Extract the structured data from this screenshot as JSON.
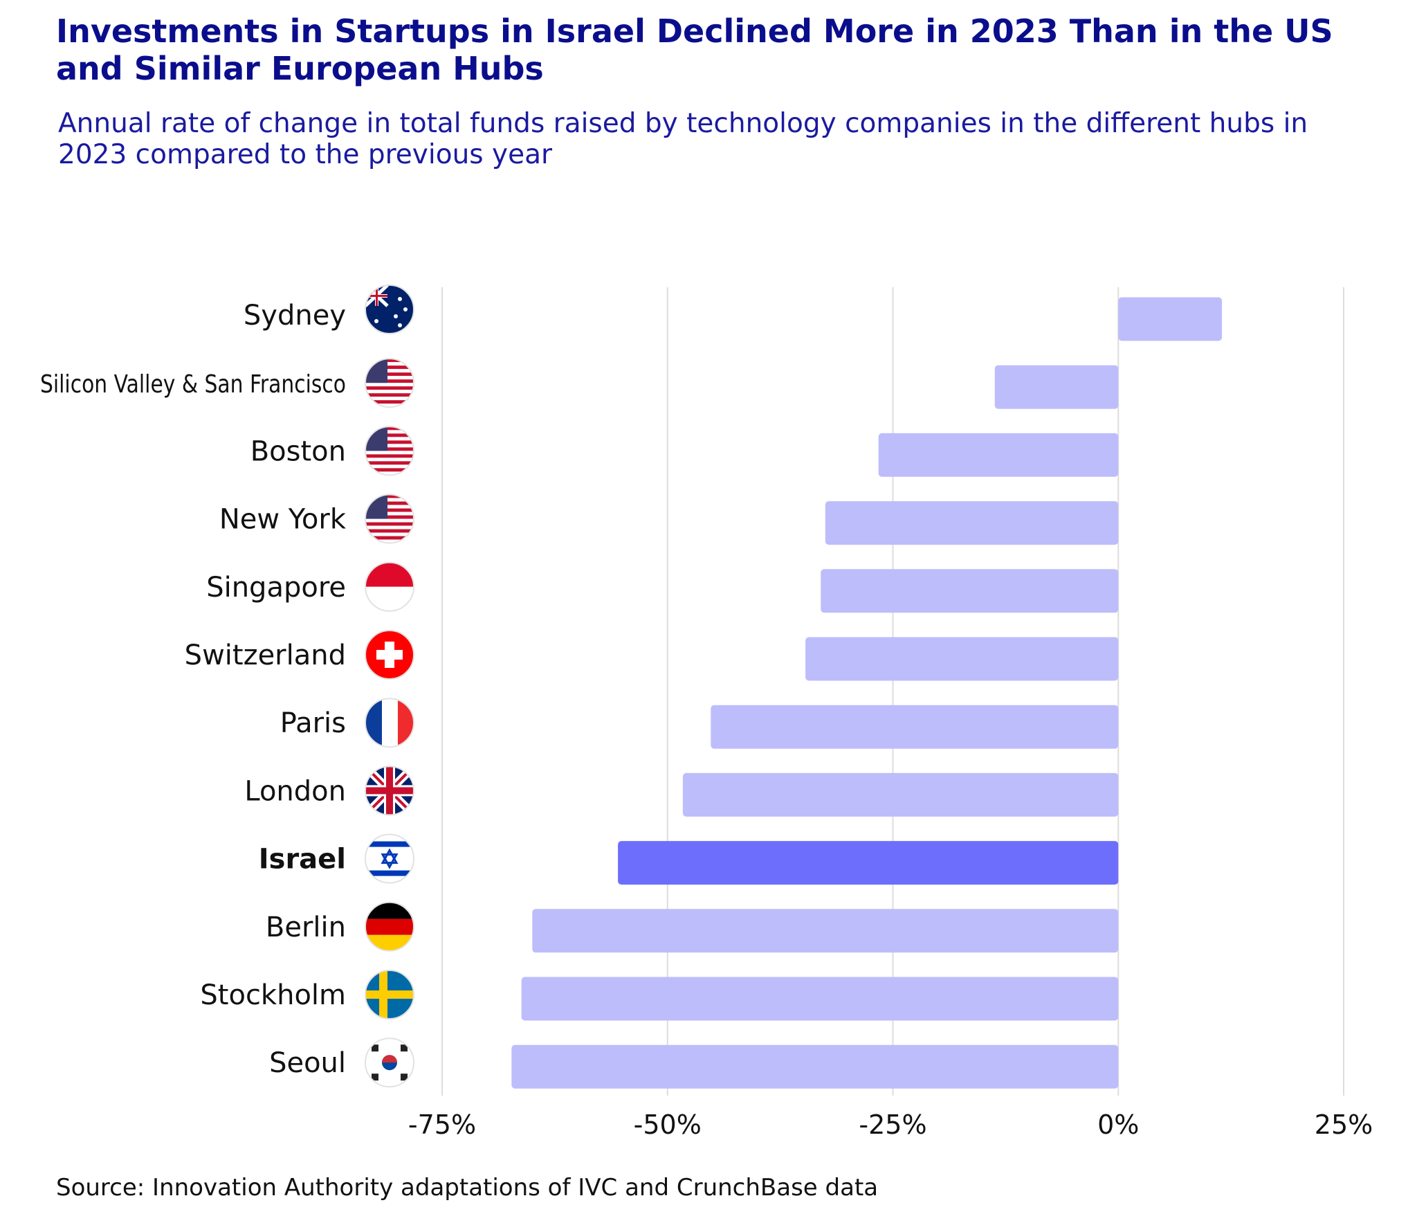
{
  "chart_data": {
    "type": "bar",
    "orientation": "horizontal",
    "title": "Investments in Startups in Israel Declined More in 2023 Than in the US and Similar European Hubs",
    "subtitle": "Annual rate of change in total funds raised by technology companies in the different hubs in 2023 compared to the previous year",
    "source": "Source: Innovation Authority adaptations of IVC and CrunchBase data",
    "categories": [
      "Sydney",
      "Silicon Valley & San Francisco",
      "Boston",
      "New York",
      "Singapore",
      "Switzerland",
      "Paris",
      "London",
      "Israel",
      "Berlin",
      "Stockholm",
      "Seoul"
    ],
    "flags": [
      "australia",
      "usa",
      "usa",
      "usa",
      "singapore",
      "switzerland",
      "france",
      "uk",
      "israel",
      "germany",
      "sweden",
      "south-korea"
    ],
    "values": [
      11.5,
      -13.7,
      -26.6,
      -32.5,
      -33,
      -34.7,
      -45.2,
      -48.3,
      -55.5,
      -65,
      -66.2,
      -67.3
    ],
    "highlight": "Israel",
    "xlim": [
      -75,
      25
    ],
    "xticks": [
      -75,
      -50,
      -25,
      0,
      25
    ],
    "xtick_labels": [
      "-75%",
      "-50%",
      "-25%",
      "0%",
      "25%"
    ],
    "grid": "vertical",
    "colors": {
      "bar": "#bdbdfc",
      "highlight": "#6e6efd",
      "title": "#0a0e8c",
      "grid": "#dddddd"
    }
  }
}
